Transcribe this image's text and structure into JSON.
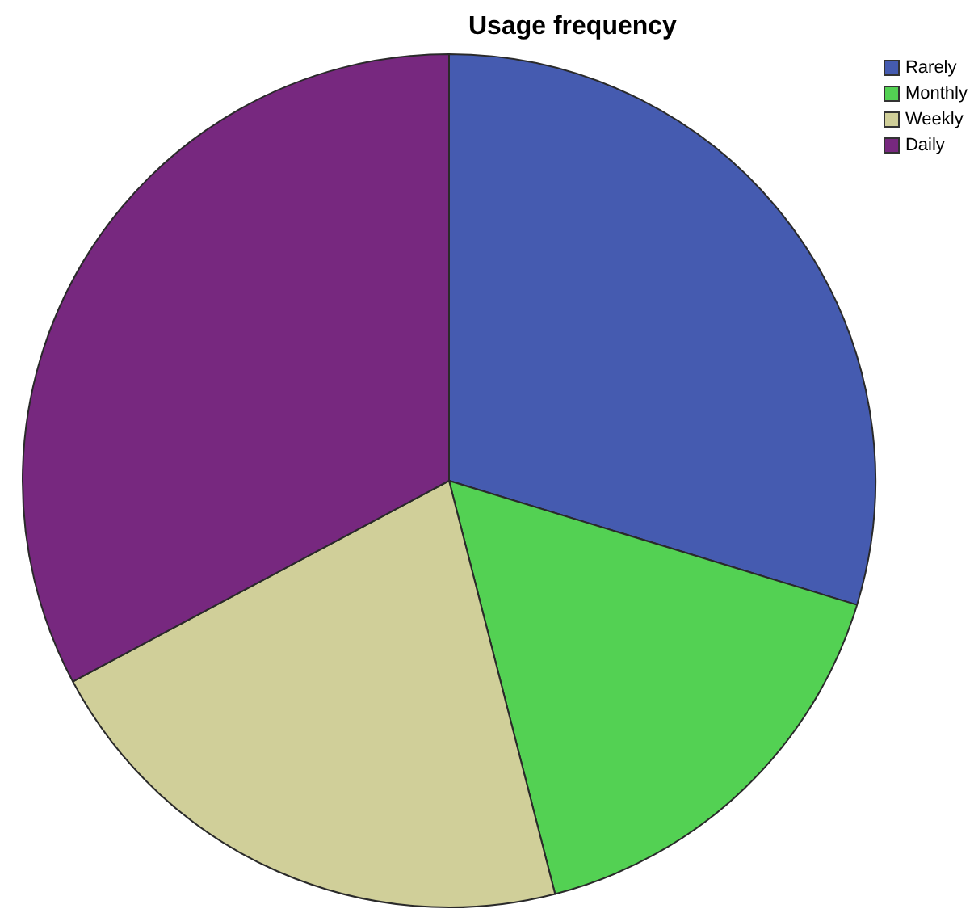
{
  "chart_data": {
    "type": "pie",
    "title": "Usage frequency",
    "categories": [
      "Rarely",
      "Monthly",
      "Weekly",
      "Daily"
    ],
    "values": [
      29.7,
      16.3,
      21.2,
      32.8
    ],
    "colors": [
      "#455bb0",
      "#53d153",
      "#d0cf99",
      "#77287f"
    ],
    "legend": "top right"
  }
}
